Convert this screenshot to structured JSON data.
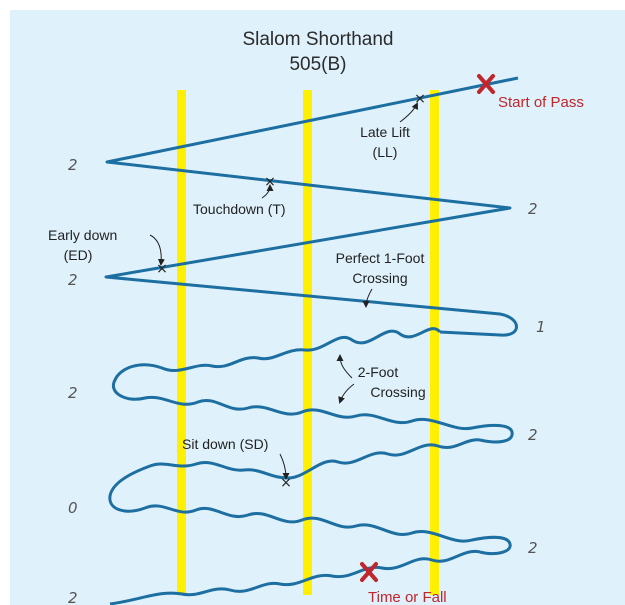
{
  "title": {
    "line1": "Slalom Shorthand",
    "line2": "505(B)"
  },
  "colors": {
    "background": "#dff1fb",
    "buoy_line": "#ffef00",
    "path": "#1c6fa0",
    "marker": "#c0262c"
  },
  "labels": {
    "start_of_pass": "Start of Pass",
    "late_lift": "Late Lift",
    "late_lift_abbr": "(LL)",
    "touchdown": "Touchdown (T)",
    "early_down": "Early down",
    "early_down_abbr": "(ED)",
    "perfect_crossing_1": "Perfect 1-Foot",
    "perfect_crossing_2": "Crossing",
    "two_foot_1": "2-Foot",
    "two_foot_2": "Crossing",
    "sit_down": "Sit down (SD)",
    "time_or_fall": "Time or Fall"
  },
  "scores": {
    "left": [
      "2",
      "2",
      "2",
      "0",
      "2"
    ],
    "right": [
      "2",
      "1",
      "2",
      "2"
    ]
  },
  "icons": {
    "start_marker": "x-mark-icon",
    "end_marker": "x-mark-icon",
    "small_marks": "cross-mark-icon"
  }
}
